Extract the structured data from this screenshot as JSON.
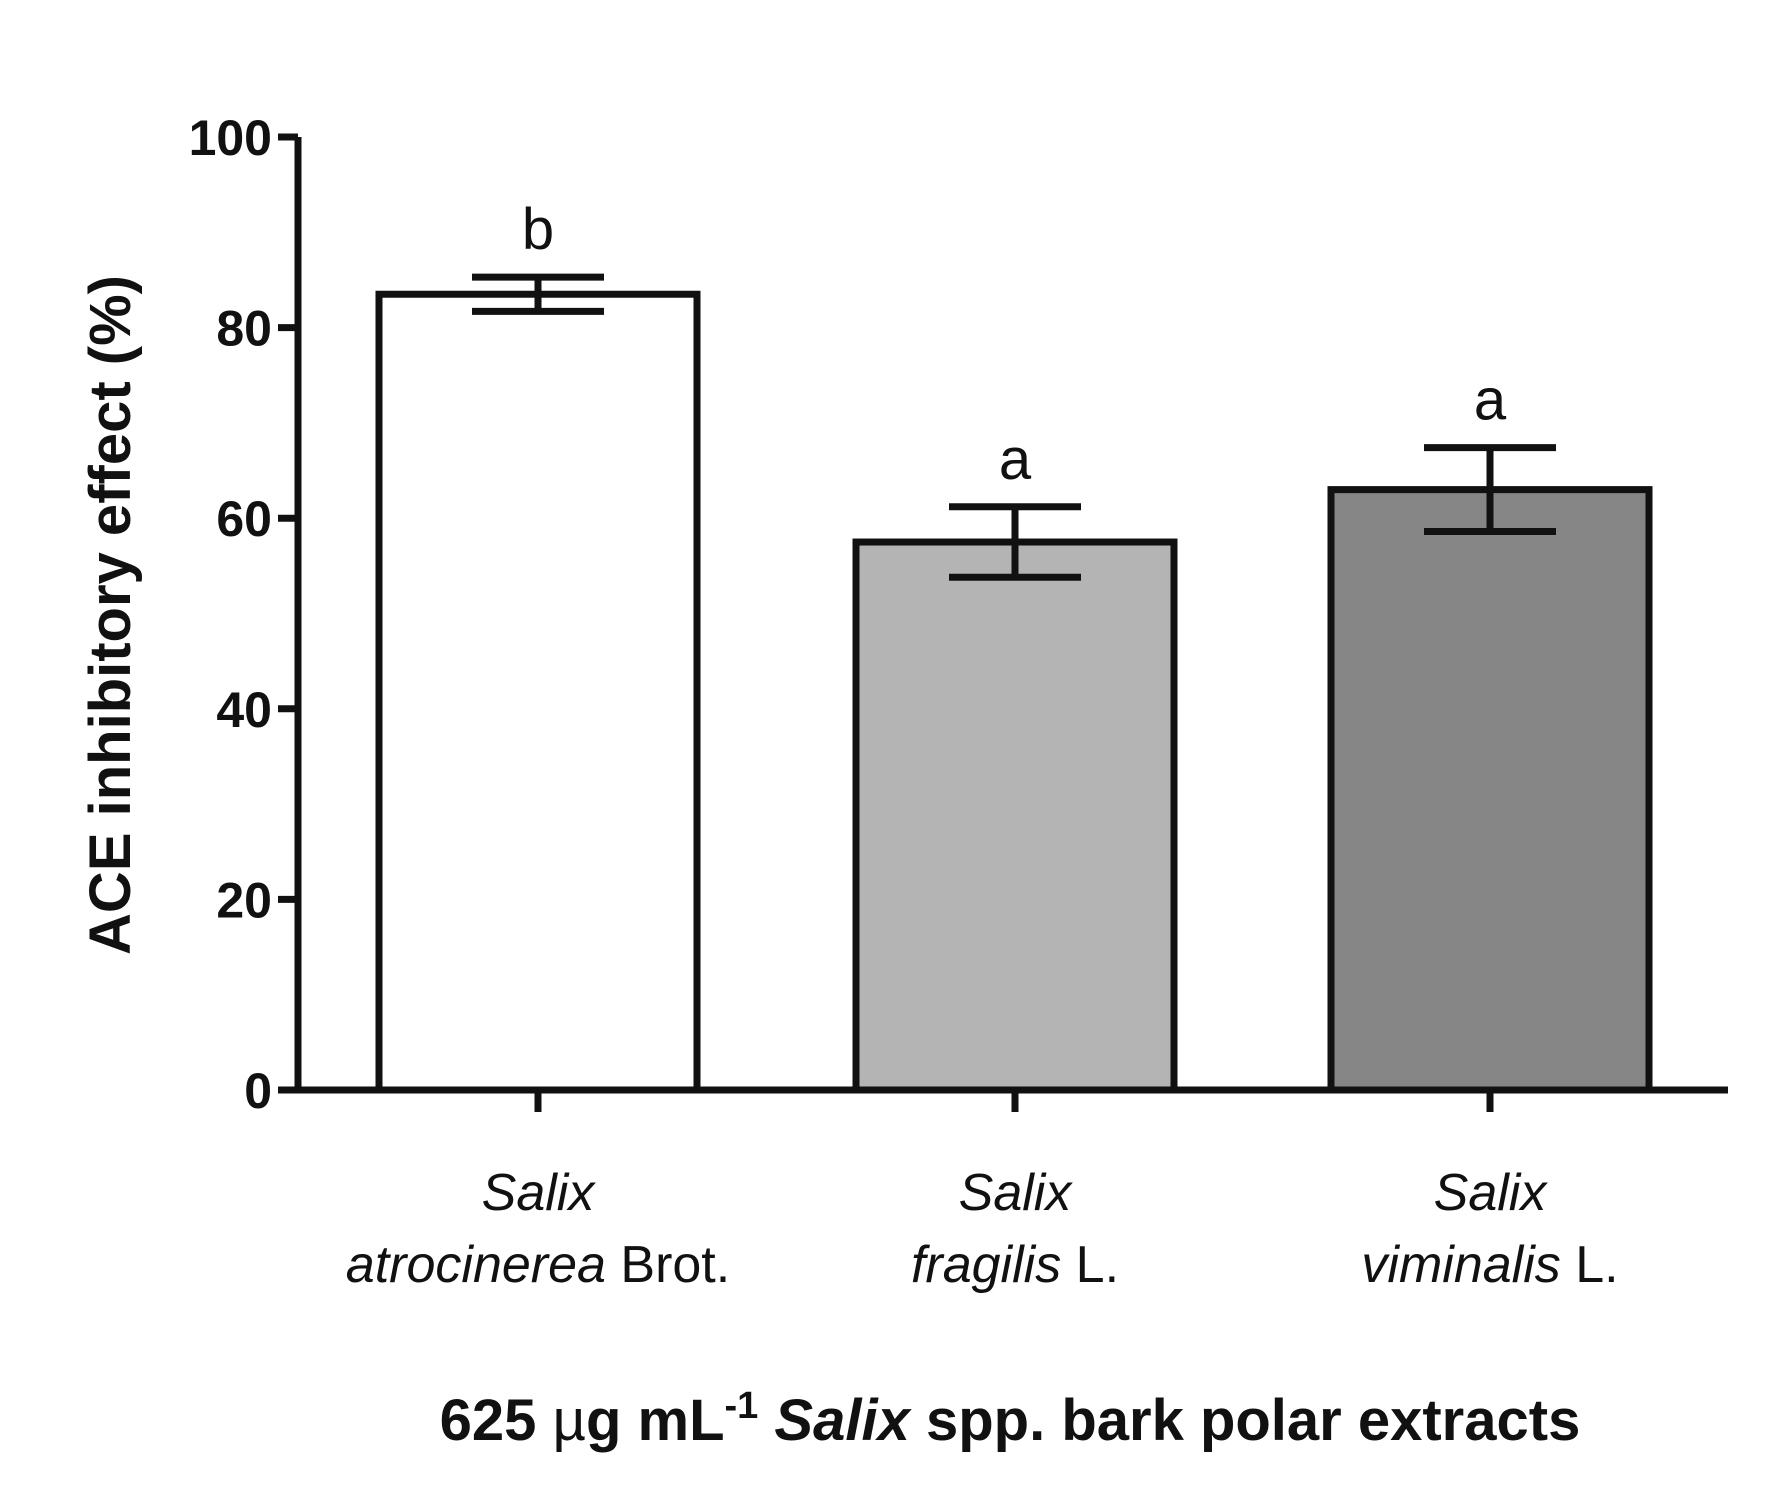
{
  "chart_data": {
    "type": "bar",
    "title": "",
    "ylabel": "ACE inhibitory effect (%)",
    "xlabel": {
      "prefix": "625 ",
      "mu": "µ",
      "unit": "g mL",
      "exp": "-1",
      "genus": "Salix",
      "rest": " spp. bark polar extracts"
    },
    "ylim": [
      0,
      100
    ],
    "yticks": [
      0,
      20,
      40,
      60,
      80,
      100
    ],
    "grid": false,
    "categories": [
      {
        "genus": "Salix",
        "species": "atrocinerea",
        "author": " Brot."
      },
      {
        "genus": "Salix",
        "species": "fragilis",
        "author": " L."
      },
      {
        "genus": "Salix",
        "species": "viminalis",
        "author": " L."
      }
    ],
    "values": [
      83.5,
      57.5,
      63.0
    ],
    "errors": [
      1.8,
      3.7,
      4.4
    ],
    "annotations": [
      "b",
      "a",
      "a"
    ],
    "colors": [
      "#ffffff",
      "#b4b4b4",
      "#868686"
    ]
  }
}
